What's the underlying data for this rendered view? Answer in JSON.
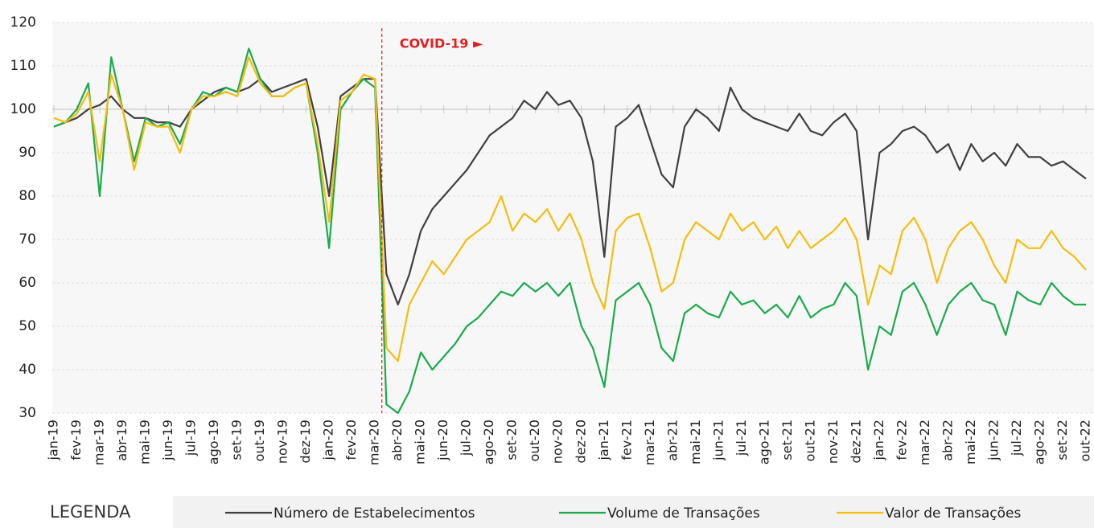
{
  "chart_data": {
    "type": "line",
    "categories": [
      "jan-19",
      null,
      "fev-19",
      null,
      "mar-19",
      null,
      "abr-19",
      null,
      "mai-19",
      null,
      "jun-19",
      null,
      "jul-19",
      null,
      "ago-19",
      null,
      "set-19",
      null,
      "out-19",
      null,
      "nov-19",
      null,
      "dez-19",
      null,
      "jan-20",
      null,
      "fev-20",
      null,
      "mar-20",
      null,
      "abr-20",
      null,
      "mai-20",
      null,
      "jun-20",
      null,
      "jul-20",
      null,
      "ago-20",
      null,
      "set-20",
      null,
      "out-20",
      null,
      "nov-20",
      null,
      "dez-20",
      null,
      "jan-21",
      null,
      "fev-21",
      null,
      "mar-21",
      null,
      "abr-21",
      null,
      "mai-21",
      null,
      "jun-21",
      null,
      "jul-21",
      null,
      "ago-21",
      null,
      "set-21",
      null,
      "out-21",
      null,
      "nov-21",
      null,
      "dez-21",
      null,
      "jan-22",
      null,
      "fev-22",
      null,
      "mar-22",
      null,
      "abr-22",
      null,
      "mai-22",
      null,
      "jun-22",
      null,
      "jul-22",
      null,
      "ago-22",
      null,
      "set-22",
      null,
      "out-22"
    ],
    "series": [
      {
        "name": "Número de Estabelecimentos",
        "color": "#404040",
        "values": [
          96,
          97,
          98,
          100,
          101,
          103,
          100,
          98,
          98,
          97,
          97,
          96,
          100,
          102,
          104,
          105,
          104,
          105,
          107,
          104,
          105,
          106,
          107,
          96,
          80,
          103,
          105,
          107,
          107,
          62,
          55,
          62,
          72,
          77,
          80,
          83,
          86,
          90,
          94,
          96,
          98,
          102,
          100,
          104,
          101,
          102,
          98,
          88,
          66,
          96,
          98,
          101,
          93,
          85,
          82,
          96,
          100,
          98,
          95,
          105,
          100,
          98,
          97,
          96,
          95,
          99,
          95,
          94,
          97,
          99,
          95,
          70,
          90,
          92,
          95,
          96,
          94,
          90,
          92,
          86,
          92,
          88,
          90,
          87,
          92,
          89,
          89,
          87,
          88,
          86,
          84
        ]
      },
      {
        "name": "Volume de Transações",
        "color": "#1aab4b",
        "values": [
          96,
          97,
          100,
          106,
          80,
          112,
          100,
          88,
          98,
          96,
          97,
          92,
          100,
          104,
          103,
          105,
          104,
          114,
          107,
          103,
          103,
          105,
          106,
          90,
          68,
          100,
          104,
          107,
          105,
          32,
          30,
          35,
          44,
          40,
          43,
          46,
          50,
          52,
          55,
          58,
          57,
          60,
          58,
          60,
          57,
          60,
          50,
          45,
          36,
          56,
          58,
          60,
          55,
          45,
          42,
          53,
          55,
          53,
          52,
          58,
          55,
          56,
          53,
          55,
          52,
          57,
          52,
          54,
          55,
          60,
          57,
          40,
          50,
          48,
          58,
          60,
          55,
          48,
          55,
          58,
          60,
          56,
          55,
          48,
          58,
          56,
          55,
          60,
          57,
          55,
          55
        ]
      },
      {
        "name": "Valor de Transações",
        "color": "#f5bd0f",
        "values": [
          98,
          97,
          99,
          104,
          88,
          108,
          100,
          86,
          97,
          96,
          96,
          90,
          100,
          103,
          103,
          104,
          103,
          112,
          106,
          103,
          103,
          105,
          106,
          92,
          74,
          102,
          104,
          108,
          107,
          45,
          42,
          55,
          60,
          65,
          62,
          66,
          70,
          72,
          74,
          80,
          72,
          76,
          74,
          77,
          72,
          76,
          70,
          60,
          54,
          72,
          75,
          76,
          68,
          58,
          60,
          70,
          74,
          72,
          70,
          76,
          72,
          74,
          70,
          73,
          68,
          72,
          68,
          70,
          72,
          75,
          70,
          55,
          64,
          62,
          72,
          75,
          70,
          60,
          68,
          72,
          74,
          70,
          64,
          60,
          70,
          68,
          68,
          72,
          68,
          66,
          63
        ]
      }
    ],
    "ylim": [
      30,
      120
    ],
    "yticks": [
      30,
      40,
      50,
      60,
      70,
      80,
      90,
      100,
      110,
      120
    ],
    "grid": true,
    "reference_line": 100,
    "annotation": {
      "text": "COVID-19 ►",
      "at": "mar-20"
    },
    "legend_title": "LEGENDA"
  }
}
